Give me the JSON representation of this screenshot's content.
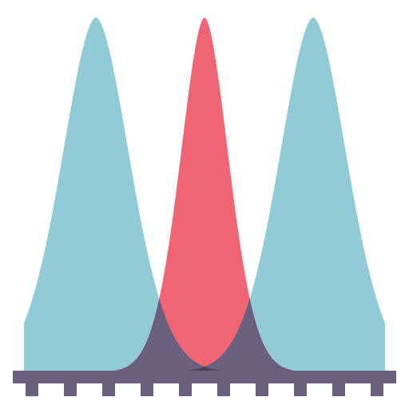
{
  "icon": {
    "name": "overlapping-distribution-curves-icon",
    "colors": {
      "side_curve": "#92CBD7",
      "center_curve": "#F06573",
      "overlap_side_center": "#6A607E",
      "overlap_all": "#4C4259",
      "overlap_side_side": "#4D9DBA",
      "axis": "#6A607E"
    },
    "curves": [
      {
        "name": "left-curve",
        "peak": 120,
        "spread": 42
      },
      {
        "name": "center-curve",
        "peak": 256,
        "spread": 30
      },
      {
        "name": "right-curve",
        "peak": 392,
        "spread": 42
      }
    ],
    "axis": {
      "tick_count": 10
    }
  }
}
